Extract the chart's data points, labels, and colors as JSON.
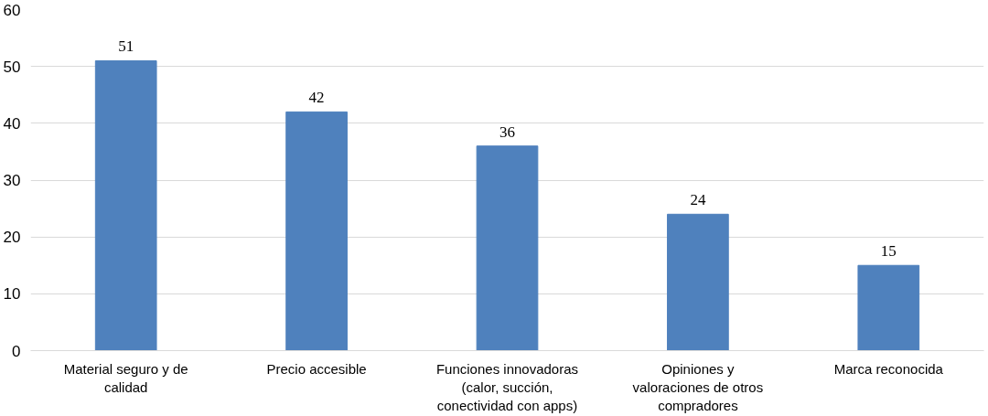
{
  "chart_data": {
    "type": "bar",
    "categories": [
      "Material seguro y de calidad",
      "Precio accesible",
      "Funciones innovadoras (calor, succión, conectividad con apps)",
      "Opiniones y valoraciones de otros compradores",
      "Marca reconocida"
    ],
    "values": [
      51,
      42,
      36,
      24,
      15
    ],
    "color": "#4f81bd",
    "ylim": [
      0,
      60
    ],
    "yticks": [
      0,
      10,
      20,
      30,
      40,
      50,
      60
    ],
    "grid": "y",
    "data_labels": true
  }
}
